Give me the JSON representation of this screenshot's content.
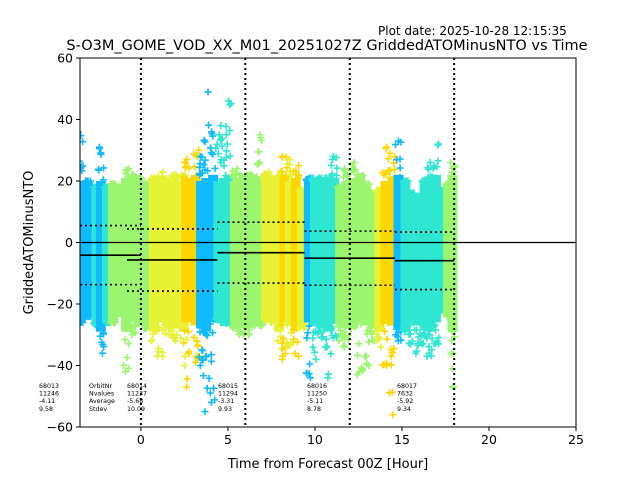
{
  "plot_date": "Plot date: 2025-10-28 12:15:35",
  "chart_data": {
    "type": "scatter",
    "title": "S-O3M_GOME_VOD_XX_M01_20251027Z GriddedATOMinusNTO vs Time",
    "xlabel": "Time from Forecast 00Z [Hour]",
    "ylabel": "GriddedATOMinusNTO",
    "xlim": [
      -3.5,
      25
    ],
    "ylim": [
      -60,
      60
    ],
    "xticks": [
      0,
      5,
      10,
      15,
      20,
      25
    ],
    "yticks": [
      -60,
      -40,
      -20,
      0,
      20,
      40,
      60
    ],
    "zero_line": 0,
    "vertical_dotted_lines": [
      0,
      6,
      12,
      18
    ],
    "colors": [
      "#0fbaff",
      "#2fe6d2",
      "#9bf56e",
      "#e8f234",
      "#ffd700"
    ],
    "stat_labels": [
      "OrbitNr",
      "Nvalues",
      "Average",
      "Stdev"
    ],
    "orbits": [
      {
        "id": "68013",
        "nvalues": "11246",
        "average": "-4.11",
        "stdev": "9.58",
        "t_start": -3.5,
        "t_end": 0,
        "mean": -4.11,
        "upper": 5.5,
        "lower": -13.7
      },
      {
        "id": "68014",
        "nvalues": "11237",
        "average": "-5.68",
        "stdev": "10.09",
        "t_start": -0.8,
        "t_end": 4.4,
        "mean": -5.68,
        "upper": 4.4,
        "lower": -15.8
      },
      {
        "id": "68015",
        "nvalues": "11294",
        "average": "-3.31",
        "stdev": "9.93",
        "t_start": 4.4,
        "t_end": 9.4,
        "mean": -3.31,
        "upper": 6.6,
        "lower": -13.2
      },
      {
        "id": "68016",
        "nvalues": "11250",
        "average": "-5.11",
        "stdev": "8.78",
        "t_start": 9.4,
        "t_end": 14.6,
        "mean": -5.11,
        "upper": 3.7,
        "lower": -13.9
      },
      {
        "id": "68017",
        "nvalues": "7632",
        "average": "-5.92",
        "stdev": "9.34",
        "t_start": 14.6,
        "t_end": 18.0,
        "mean": -5.92,
        "upper": 3.4,
        "lower": -15.3
      }
    ],
    "columns": [
      {
        "x": -3.45,
        "lo": -26,
        "hi": 36,
        "c": 0
      },
      {
        "x": -3.05,
        "lo": -24,
        "hi": 20,
        "c": 0
      },
      {
        "x": -2.55,
        "lo": -27,
        "hi": 18,
        "c": 1
      },
      {
        "x": -2.3,
        "lo": -36,
        "hi": 31,
        "c": 0
      },
      {
        "x": -1.95,
        "lo": -26,
        "hi": 18,
        "c": 1
      },
      {
        "x": -1.6,
        "lo": -26,
        "hi": 19,
        "c": 2
      },
      {
        "x": -1.25,
        "lo": -23,
        "hi": 18,
        "c": 2
      },
      {
        "x": -0.85,
        "lo": -42,
        "hi": 24,
        "c": 2
      },
      {
        "x": -0.45,
        "lo": -30,
        "hi": 22,
        "c": 2
      },
      {
        "x": -0.1,
        "lo": -26,
        "hi": 21,
        "c": 2
      },
      {
        "x": 0.35,
        "lo": -28,
        "hi": 19,
        "c": 2
      },
      {
        "x": 0.75,
        "lo": -32,
        "hi": 21,
        "c": 3
      },
      {
        "x": 1.1,
        "lo": -37,
        "hi": 23,
        "c": 3
      },
      {
        "x": 1.5,
        "lo": -30,
        "hi": 21,
        "c": 3
      },
      {
        "x": 1.9,
        "lo": -32,
        "hi": 22,
        "c": 3
      },
      {
        "x": 2.45,
        "lo": -40,
        "hi": 22,
        "c": 3
      },
      {
        "x": 2.6,
        "lo": -47,
        "hi": 27,
        "c": 4
      },
      {
        "x": 3.15,
        "lo": -39,
        "hi": 30,
        "c": 4
      },
      {
        "x": 3.45,
        "lo": -40,
        "hi": 28,
        "c": 0
      },
      {
        "x": 3.75,
        "lo": -55,
        "hi": 49,
        "c": 0
      },
      {
        "x": 4.15,
        "lo": -52,
        "hi": 36,
        "c": 0
      },
      {
        "x": 4.45,
        "lo": -25,
        "hi": 35,
        "c": 1
      },
      {
        "x": 4.75,
        "lo": -26,
        "hi": 38,
        "c": 1
      },
      {
        "x": 5.05,
        "lo": -27,
        "hi": 46,
        "c": 1
      },
      {
        "x": 5.4,
        "lo": -28,
        "hi": 24,
        "c": 2
      },
      {
        "x": 5.8,
        "lo": -30,
        "hi": 22,
        "c": 2
      },
      {
        "x": 6.15,
        "lo": -30,
        "hi": 22,
        "c": 2
      },
      {
        "x": 6.5,
        "lo": -27,
        "hi": 22,
        "c": 2
      },
      {
        "x": 6.85,
        "lo": -27,
        "hi": 35,
        "c": 2
      },
      {
        "x": 7.2,
        "lo": -25,
        "hi": 23,
        "c": 3
      },
      {
        "x": 7.6,
        "lo": -26,
        "hi": 21,
        "c": 3
      },
      {
        "x": 7.95,
        "lo": -32,
        "hi": 23,
        "c": 3
      },
      {
        "x": 8.25,
        "lo": -38,
        "hi": 28,
        "c": 4
      },
      {
        "x": 8.55,
        "lo": -34,
        "hi": 27,
        "c": 3
      },
      {
        "x": 8.9,
        "lo": -37,
        "hi": 25,
        "c": 4
      },
      {
        "x": 9.25,
        "lo": -28,
        "hi": 17,
        "c": 3
      },
      {
        "x": 9.65,
        "lo": -44,
        "hi": 21,
        "c": 0
      },
      {
        "x": 10.0,
        "lo": -38,
        "hi": 21,
        "c": 1
      },
      {
        "x": 10.35,
        "lo": -31,
        "hi": 21,
        "c": 1
      },
      {
        "x": 10.75,
        "lo": -44,
        "hi": 21,
        "c": 1
      },
      {
        "x": 11.1,
        "lo": -31,
        "hi": 28,
        "c": 1
      },
      {
        "x": 11.45,
        "lo": -32,
        "hi": 18,
        "c": 2
      },
      {
        "x": 11.8,
        "lo": -34,
        "hi": 24,
        "c": 2
      },
      {
        "x": 12.2,
        "lo": -28,
        "hi": 26,
        "c": 2
      },
      {
        "x": 12.6,
        "lo": -43,
        "hi": 22,
        "c": 2
      },
      {
        "x": 12.95,
        "lo": -40,
        "hi": 19,
        "c": 2
      },
      {
        "x": 13.3,
        "lo": -32,
        "hi": 16,
        "c": 2
      },
      {
        "x": 13.7,
        "lo": -34,
        "hi": 17,
        "c": 3
      },
      {
        "x": 14.05,
        "lo": -40,
        "hi": 31,
        "c": 4
      },
      {
        "x": 14.45,
        "lo": -56,
        "hi": 29,
        "c": 4
      },
      {
        "x": 14.8,
        "lo": -32,
        "hi": 33,
        "c": 0
      },
      {
        "x": 15.2,
        "lo": -29,
        "hi": 20,
        "c": 1
      },
      {
        "x": 15.55,
        "lo": -33,
        "hi": 16,
        "c": 1
      },
      {
        "x": 15.9,
        "lo": -36,
        "hi": 15,
        "c": 1
      },
      {
        "x": 16.3,
        "lo": -33,
        "hi": 20,
        "c": 1
      },
      {
        "x": 16.6,
        "lo": -37,
        "hi": 26,
        "c": 1
      },
      {
        "x": 16.95,
        "lo": -33,
        "hi": 32,
        "c": 1
      },
      {
        "x": 17.3,
        "lo": -22,
        "hi": 17,
        "c": 1
      },
      {
        "x": 17.65,
        "lo": -24,
        "hi": 19,
        "c": 2
      },
      {
        "x": 17.9,
        "lo": -47,
        "hi": 26,
        "c": 2
      }
    ]
  }
}
